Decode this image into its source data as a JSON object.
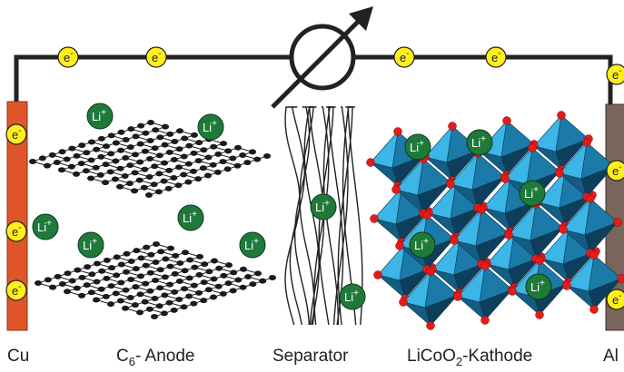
{
  "electron": {
    "symbol": "e",
    "charge": "-"
  },
  "lithium": {
    "symbol": "Li",
    "charge": "+"
  },
  "labels": {
    "cu": "Cu",
    "anode": {
      "base": "C",
      "sub": "6",
      "tail": "- Anode"
    },
    "separator": "Separator",
    "cathode": {
      "base": "LiCoO",
      "sub": "2",
      "tail": "-Kathode"
    },
    "al": "Al"
  }
}
